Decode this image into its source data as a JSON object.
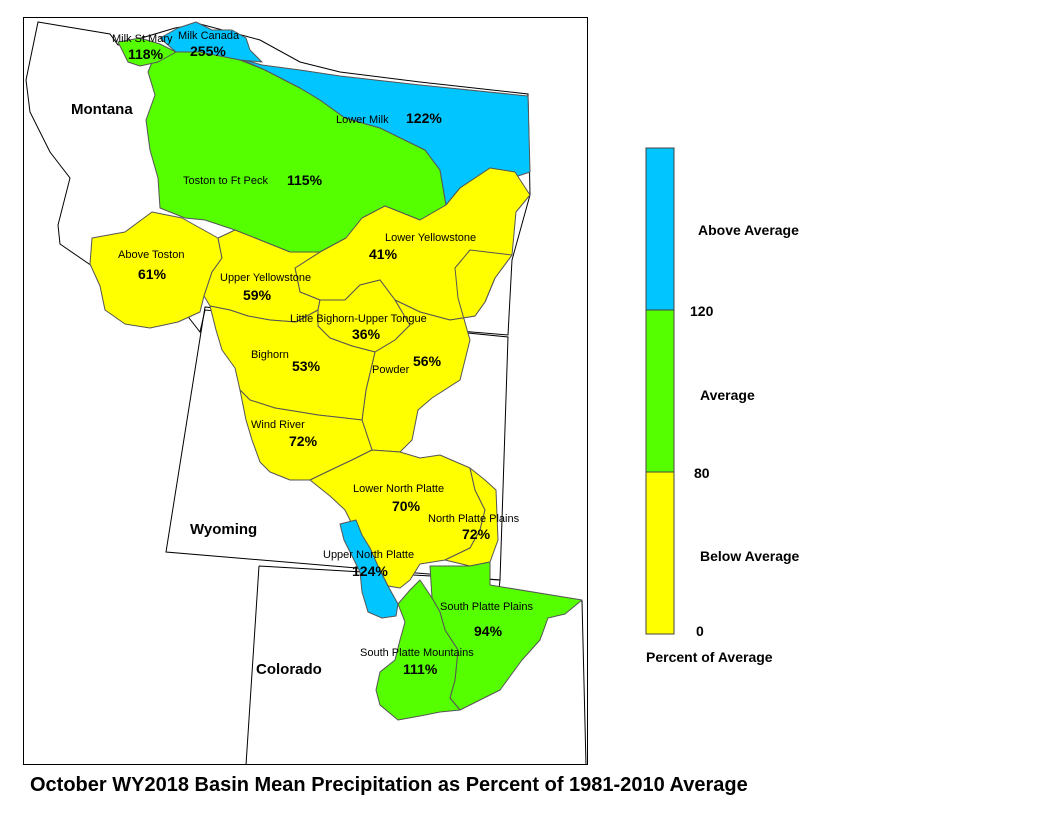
{
  "states": [
    {
      "id": "montana",
      "label": "Montana"
    },
    {
      "id": "wyoming",
      "label": "Wyoming"
    },
    {
      "id": "colorado",
      "label": "Colorado"
    }
  ],
  "basins": [
    {
      "id": "milk-st-mary",
      "name": "Milk St Mary",
      "pct": "118%",
      "category": "average"
    },
    {
      "id": "milk-canada",
      "name": "Milk Canada",
      "pct": "255%",
      "category": "above"
    },
    {
      "id": "lower-milk",
      "name": "Lower Milk",
      "pct": "122%",
      "category": "above"
    },
    {
      "id": "toston-to-ft-peck",
      "name": "Toston to Ft Peck",
      "pct": "115%",
      "category": "average"
    },
    {
      "id": "above-toston",
      "name": "Above Toston",
      "pct": "61%",
      "category": "below"
    },
    {
      "id": "lower-yellowstone",
      "name": "Lower Yellowstone",
      "pct": "41%",
      "category": "below"
    },
    {
      "id": "upper-yellowstone",
      "name": "Upper Yellowstone",
      "pct": "59%",
      "category": "below"
    },
    {
      "id": "little-bighorn-upper-tongue",
      "name": "Little Bighorn-Upper Tongue",
      "pct": "36%",
      "category": "below"
    },
    {
      "id": "bighorn",
      "name": "Bighorn",
      "pct": "53%",
      "category": "below"
    },
    {
      "id": "powder",
      "name": "Powder",
      "pct": "56%",
      "category": "below"
    },
    {
      "id": "wind-river",
      "name": "Wind River",
      "pct": "72%",
      "category": "below"
    },
    {
      "id": "lower-north-platte",
      "name": "Lower North Platte",
      "pct": "70%",
      "category": "below"
    },
    {
      "id": "north-platte-plains",
      "name": "North Platte Plains",
      "pct": "72%",
      "category": "below"
    },
    {
      "id": "upper-north-platte",
      "name": "Upper North Platte",
      "pct": "124%",
      "category": "above"
    },
    {
      "id": "south-platte-plains",
      "name": "South Platte Plains",
      "pct": "94%",
      "category": "average"
    },
    {
      "id": "south-platte-mountains",
      "name": "South Platte Mountains",
      "pct": "111%",
      "category": "average"
    }
  ],
  "colors": {
    "above": "#00c5ff",
    "average": "#55ff00",
    "below": "#ffff00"
  },
  "legend": {
    "title": "Percent of Average",
    "classes": [
      {
        "id": "above",
        "label": "Above Average",
        "color": "#00c5ff"
      },
      {
        "id": "average",
        "label": "Average",
        "color": "#55ff00"
      },
      {
        "id": "below",
        "label": "Below Average",
        "color": "#ffff00"
      }
    ],
    "breaks": [
      "120",
      "80",
      "0"
    ]
  },
  "caption": "October WY2018 Basin Mean Precipitation as Percent of 1981-2010 Average"
}
